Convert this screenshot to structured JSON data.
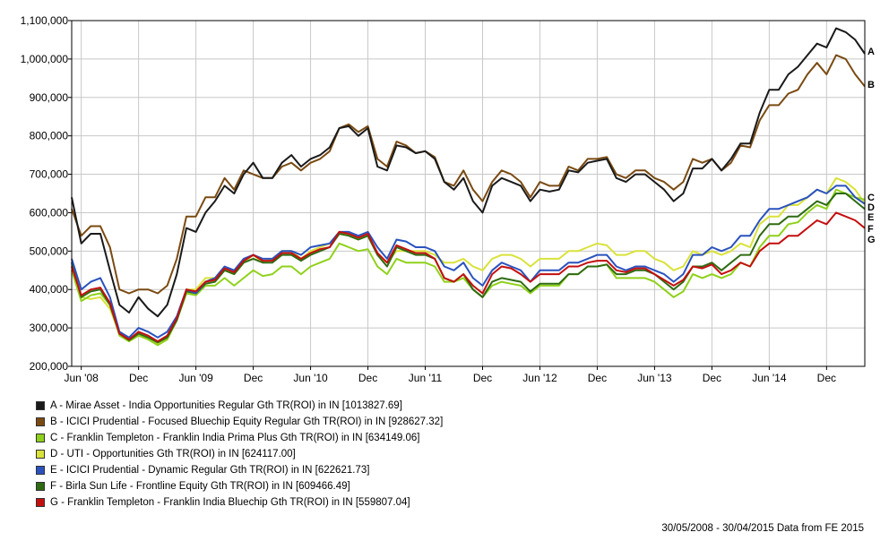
{
  "chart_data": {
    "type": "line",
    "x_tick_labels": [
      "Jun '08",
      "Dec",
      "Jun '09",
      "Dec",
      "Jun '10",
      "Dec",
      "Jun '11",
      "Dec",
      "Jun '12",
      "Dec",
      "Jun '13",
      "Dec",
      "Jun '14",
      "Dec"
    ],
    "x_start": "2008-05",
    "x_step": "month",
    "y_tick_labels": [
      "200,000",
      "300,000",
      "400,000",
      "500,000",
      "600,000",
      "700,000",
      "800,000",
      "900,000",
      "1,000,000",
      "1,100,000"
    ],
    "ylim": [
      200000,
      1100000
    ],
    "grid": true,
    "legend_position": "bottom",
    "series": [
      {
        "key": "A",
        "name": "A - Mirae Asset - India Opportunities Regular Gth TR(ROI) in IN [1013827.69]",
        "color": "#1a1a1a",
        "values": [
          640000,
          520000,
          545000,
          545000,
          450000,
          360000,
          340000,
          380000,
          350000,
          330000,
          360000,
          440000,
          560000,
          550000,
          600000,
          630000,
          670000,
          650000,
          700000,
          730000,
          690000,
          690000,
          730000,
          750000,
          720000,
          740000,
          750000,
          770000,
          820000,
          825000,
          800000,
          820000,
          720000,
          710000,
          775000,
          770000,
          755000,
          760000,
          740000,
          680000,
          660000,
          690000,
          630000,
          600000,
          670000,
          690000,
          680000,
          670000,
          630000,
          660000,
          655000,
          660000,
          710000,
          705000,
          730000,
          735000,
          740000,
          690000,
          680000,
          700000,
          700000,
          680000,
          660000,
          630000,
          650000,
          715000,
          715000,
          740000,
          710000,
          740000,
          780000,
          780000,
          860000,
          920000,
          920000,
          960000,
          980000,
          1010000,
          1040000,
          1030000,
          1080000,
          1070000,
          1050000,
          1013827.69
        ]
      },
      {
        "key": "B",
        "name": "B - ICICI Prudential - Focused Bluechip Equity Regular Gth TR(ROI) in IN [928627.32]",
        "color": "#7a4a12",
        "values": [
          610000,
          540000,
          565000,
          565000,
          510000,
          400000,
          390000,
          400000,
          400000,
          390000,
          410000,
          480000,
          590000,
          590000,
          640000,
          640000,
          690000,
          660000,
          710000,
          700000,
          690000,
          690000,
          720000,
          730000,
          710000,
          730000,
          740000,
          760000,
          820000,
          830000,
          810000,
          825000,
          740000,
          720000,
          785000,
          775000,
          755000,
          760000,
          745000,
          680000,
          670000,
          710000,
          660000,
          630000,
          680000,
          710000,
          700000,
          680000,
          640000,
          680000,
          670000,
          670000,
          720000,
          710000,
          740000,
          740000,
          745000,
          700000,
          690000,
          710000,
          710000,
          690000,
          680000,
          660000,
          680000,
          740000,
          730000,
          740000,
          710000,
          730000,
          775000,
          770000,
          840000,
          880000,
          880000,
          910000,
          920000,
          960000,
          990000,
          960000,
          1010000,
          1000000,
          960000,
          928627.32
        ]
      },
      {
        "key": "C",
        "name": "C - Franklin Templeton - Franklin India Prima Plus Gth TR(ROI) in IN [634149.06]",
        "color": "#8fd11a",
        "values": [
          450000,
          370000,
          385000,
          390000,
          360000,
          280000,
          265000,
          280000,
          270000,
          255000,
          270000,
          320000,
          390000,
          385000,
          410000,
          410000,
          430000,
          410000,
          430000,
          450000,
          435000,
          440000,
          460000,
          460000,
          440000,
          460000,
          470000,
          480000,
          520000,
          510000,
          500000,
          505000,
          460000,
          440000,
          480000,
          470000,
          470000,
          470000,
          460000,
          420000,
          420000,
          430000,
          400000,
          380000,
          410000,
          420000,
          415000,
          410000,
          390000,
          410000,
          410000,
          410000,
          440000,
          440000,
          460000,
          460000,
          465000,
          430000,
          430000,
          430000,
          430000,
          420000,
          400000,
          380000,
          395000,
          440000,
          430000,
          440000,
          430000,
          440000,
          470000,
          460000,
          510000,
          540000,
          540000,
          570000,
          575000,
          600000,
          620000,
          610000,
          660000,
          650000,
          640000,
          634149.06
        ]
      },
      {
        "key": "D",
        "name": "D - UTI - Opportunities Gth TR(ROI) in IN [624117.00]",
        "color": "#d9e23a",
        "values": [
          460000,
          380000,
          375000,
          380000,
          350000,
          285000,
          270000,
          280000,
          275000,
          260000,
          270000,
          320000,
          400000,
          400000,
          430000,
          430000,
          450000,
          440000,
          470000,
          490000,
          470000,
          480000,
          500000,
          500000,
          480000,
          500000,
          510000,
          520000,
          550000,
          540000,
          530000,
          540000,
          490000,
          470000,
          500000,
          500000,
          500000,
          500000,
          490000,
          470000,
          470000,
          480000,
          460000,
          450000,
          480000,
          490000,
          490000,
          480000,
          460000,
          480000,
          480000,
          480000,
          500000,
          500000,
          510000,
          520000,
          515000,
          490000,
          490000,
          500000,
          500000,
          480000,
          470000,
          450000,
          460000,
          500000,
          490000,
          500000,
          490000,
          500000,
          520000,
          510000,
          570000,
          590000,
          590000,
          620000,
          620000,
          640000,
          660000,
          650000,
          690000,
          680000,
          660000,
          624117.0
        ]
      },
      {
        "key": "E",
        "name": "E - ICICI Prudential - Dynamic Regular Gth TR(ROI) in IN [622621.73]",
        "color": "#2a52be",
        "values": [
          480000,
          400000,
          420000,
          430000,
          380000,
          290000,
          275000,
          300000,
          290000,
          275000,
          290000,
          330000,
          400000,
          390000,
          420000,
          430000,
          460000,
          450000,
          480000,
          490000,
          480000,
          480000,
          500000,
          500000,
          490000,
          510000,
          515000,
          520000,
          550000,
          550000,
          540000,
          550000,
          510000,
          480000,
          530000,
          525000,
          510000,
          510000,
          500000,
          460000,
          450000,
          470000,
          430000,
          410000,
          450000,
          470000,
          460000,
          450000,
          420000,
          450000,
          450000,
          450000,
          470000,
          470000,
          480000,
          490000,
          490000,
          460000,
          450000,
          460000,
          460000,
          450000,
          440000,
          420000,
          440000,
          490000,
          490000,
          510000,
          500000,
          510000,
          540000,
          540000,
          580000,
          610000,
          610000,
          620000,
          630000,
          640000,
          660000,
          650000,
          670000,
          670000,
          640000,
          622621.73
        ]
      },
      {
        "key": "F",
        "name": "F - Birla Sun Life - Frontline Equity Gth TR(ROI) in IN [609466.49]",
        "color": "#2e6b12",
        "values": [
          470000,
          380000,
          395000,
          400000,
          360000,
          285000,
          268000,
          285000,
          275000,
          262000,
          275000,
          320000,
          395000,
          390000,
          415000,
          420000,
          450000,
          440000,
          470000,
          480000,
          470000,
          470000,
          490000,
          490000,
          475000,
          490000,
          500000,
          510000,
          545000,
          540000,
          530000,
          540000,
          490000,
          460000,
          510000,
          500000,
          490000,
          490000,
          480000,
          430000,
          420000,
          440000,
          400000,
          380000,
          420000,
          430000,
          425000,
          420000,
          395000,
          415000,
          415000,
          415000,
          440000,
          440000,
          460000,
          460000,
          465000,
          440000,
          440000,
          450000,
          450000,
          440000,
          420000,
          400000,
          420000,
          460000,
          460000,
          470000,
          450000,
          470000,
          490000,
          490000,
          540000,
          570000,
          570000,
          590000,
          590000,
          610000,
          630000,
          620000,
          650000,
          650000,
          630000,
          609466.49
        ]
      },
      {
        "key": "G",
        "name": "G - Franklin Templeton - Franklin India Bluechip Gth TR(ROI) in IN [559807.04]",
        "color": "#c40f0f",
        "values": [
          460000,
          385000,
          400000,
          405000,
          365000,
          285000,
          270000,
          290000,
          280000,
          265000,
          280000,
          325000,
          400000,
          395000,
          420000,
          425000,
          455000,
          445000,
          475000,
          490000,
          475000,
          475000,
          495000,
          495000,
          480000,
          495000,
          505000,
          510000,
          550000,
          545000,
          535000,
          545000,
          495000,
          470000,
          515000,
          505000,
          495000,
          495000,
          480000,
          430000,
          420000,
          440000,
          410000,
          390000,
          440000,
          460000,
          455000,
          440000,
          420000,
          440000,
          440000,
          440000,
          460000,
          460000,
          470000,
          475000,
          475000,
          450000,
          445000,
          455000,
          455000,
          440000,
          425000,
          410000,
          425000,
          460000,
          455000,
          465000,
          440000,
          450000,
          470000,
          460000,
          500000,
          520000,
          520000,
          540000,
          540000,
          560000,
          580000,
          570000,
          600000,
          590000,
          580000,
          559807.04
        ]
      }
    ]
  },
  "footer": {
    "text": "30/05/2008 - 30/04/2015 Data from FE 2015"
  }
}
